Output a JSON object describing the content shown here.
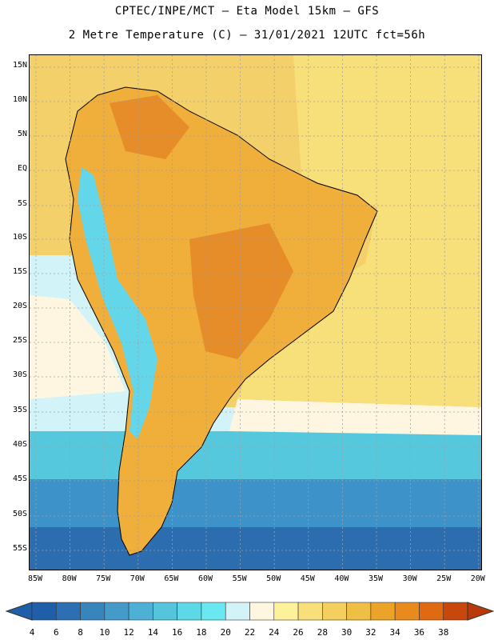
{
  "header": {
    "line1": "CPTEC/INPE/MCT —  Eta Model 15km — GFS",
    "line2": "2 Metre Temperature (C) — 31/01/2021 12UTC fct=56h"
  },
  "map": {
    "lat_labels": [
      "15N",
      "10N",
      "5N",
      "EQ",
      "5S",
      "10S",
      "15S",
      "20S",
      "25S",
      "30S",
      "35S",
      "40S",
      "45S",
      "50S",
      "55S"
    ],
    "lon_labels": [
      "85W",
      "80W",
      "75W",
      "70W",
      "65W",
      "60W",
      "55W",
      "50W",
      "45W",
      "40W",
      "35W",
      "30W",
      "25W",
      "20W"
    ],
    "regions": {
      "ocean_south_deep": "#2c6db0",
      "ocean_south": "#3d93c9",
      "ocean_mid": "#56c8de",
      "ocean_cool": "#6ee6ef",
      "ocean_pale": "#d2f4f8",
      "ocean_cream": "#fef6e0",
      "ocean_warm": "#f7df7a",
      "ocean_tropical": "#f3cf5e",
      "land_hot": "#e68c28",
      "land_warm": "#f0ae3a",
      "andes_cold": "#64d6ea"
    }
  },
  "colorbar": {
    "ticks": [
      "4",
      "6",
      "8",
      "10",
      "12",
      "14",
      "16",
      "18",
      "20",
      "22",
      "24",
      "26",
      "28",
      "30",
      "32",
      "34",
      "36",
      "38"
    ],
    "colors": [
      "#1f5ea8",
      "#2c6fb2",
      "#3884bd",
      "#449ac9",
      "#4fb0d5",
      "#54c5dd",
      "#5cd8e7",
      "#6ae8f1",
      "#d2f4f8",
      "#fef6e0",
      "#fdf19a",
      "#f7df7a",
      "#f3cf5e",
      "#efbe45",
      "#eca428",
      "#e88a1c",
      "#df6a12",
      "#c8470c"
    ]
  },
  "colors": {
    "border": "#000000",
    "grid": "#a0a0a0"
  }
}
